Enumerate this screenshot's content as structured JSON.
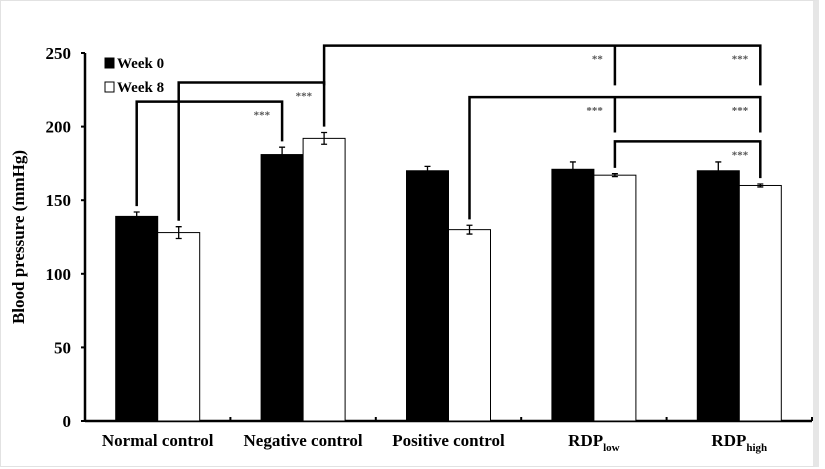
{
  "chart_data": {
    "type": "bar",
    "title": "",
    "xlabel": "",
    "ylabel": "Blood pressure (mmHg)",
    "ylim": [
      0,
      250
    ],
    "yticks": [
      0,
      50,
      100,
      150,
      200,
      250
    ],
    "grid": false,
    "legend_position": "top-left",
    "categories": [
      {
        "label": "Normal control",
        "sub": ""
      },
      {
        "label": "Negative control",
        "sub": ""
      },
      {
        "label": "Positive control",
        "sub": ""
      },
      {
        "label": "RDP",
        "sub": "low"
      },
      {
        "label": "RDP",
        "sub": "high"
      }
    ],
    "series": [
      {
        "name": "Week 0",
        "color": "#000000",
        "values": [
          139,
          181,
          170,
          171,
          170
        ],
        "errors": [
          3,
          5,
          3,
          5,
          6
        ]
      },
      {
        "name": "Week 8",
        "color": "#ffffff",
        "values": [
          128,
          192,
          130,
          167,
          160
        ],
        "errors": [
          4,
          4,
          3,
          1,
          1
        ]
      }
    ],
    "significance": [
      {
        "from": [
          0,
          0
        ],
        "to": [
          1,
          0
        ],
        "level": 217,
        "labels": [
          "***"
        ]
      },
      {
        "from": [
          0,
          1
        ],
        "to": [
          1,
          1
        ],
        "level": 230,
        "labels": [
          "***"
        ]
      },
      {
        "from": [
          1,
          1
        ],
        "to": [
          4,
          1
        ],
        "mid": [
          3,
          1
        ],
        "level": 255,
        "labels": [
          "**",
          "***"
        ]
      },
      {
        "from": [
          2,
          1
        ],
        "to": [
          4,
          1
        ],
        "mid": [
          3,
          1
        ],
        "level": 220,
        "labels": [
          "***",
          "***"
        ]
      },
      {
        "from": [
          3,
          1
        ],
        "to": [
          4,
          1
        ],
        "level": 190,
        "labels": [
          "***"
        ]
      }
    ]
  }
}
